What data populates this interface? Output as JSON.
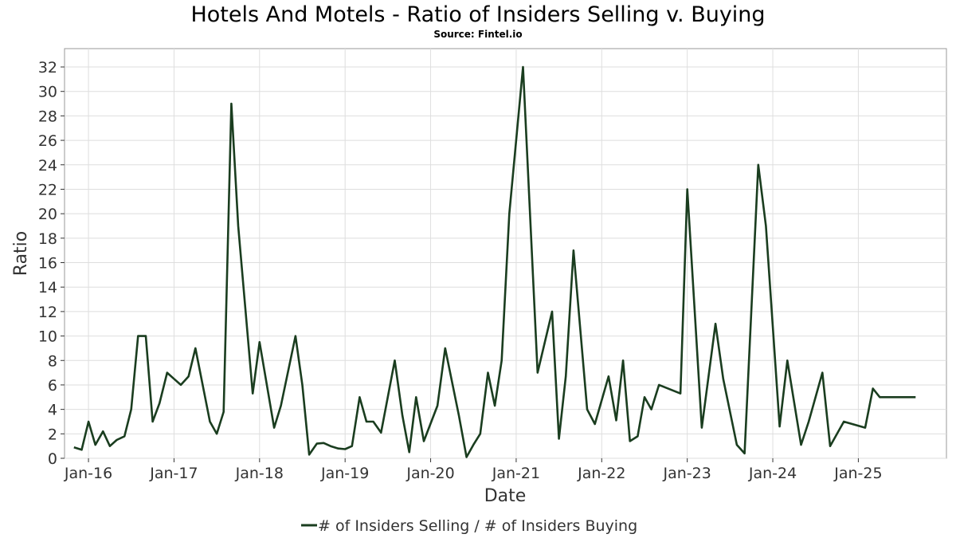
{
  "chart_data": {
    "type": "line",
    "title": "Hotels And Motels - Ratio of Insiders Selling v. Buying",
    "subtitle": "Source: Fintel.io",
    "xlabel": "Date",
    "ylabel": "Ratio",
    "ylim": [
      0,
      33.5
    ],
    "yticks": [
      0,
      2,
      4,
      6,
      8,
      10,
      12,
      14,
      16,
      18,
      20,
      22,
      24,
      26,
      28,
      30,
      32
    ],
    "xlim": [
      2015.72,
      2026.03
    ],
    "xticks": [
      {
        "label": "Jan-16",
        "x": 2016.0
      },
      {
        "label": "Jan-17",
        "x": 2017.0
      },
      {
        "label": "Jan-18",
        "x": 2018.0
      },
      {
        "label": "Jan-19",
        "x": 2019.0
      },
      {
        "label": "Jan-20",
        "x": 2020.0
      },
      {
        "label": "Jan-21",
        "x": 2021.0
      },
      {
        "label": "Jan-22",
        "x": 2022.0
      },
      {
        "label": "Jan-23",
        "x": 2023.0
      },
      {
        "label": "Jan-24",
        "x": 2024.0
      },
      {
        "label": "Jan-25",
        "x": 2025.0
      }
    ],
    "grid": true,
    "legend_position": "bottom-center",
    "line_color": "#1a3d1f",
    "series": [
      {
        "name": "# of Insiders Selling / # of Insiders Buying",
        "x": [
          2015.83,
          2015.92,
          2016.0,
          2016.08,
          2016.17,
          2016.25,
          2016.33,
          2016.42,
          2016.5,
          2016.58,
          2016.67,
          2016.75,
          2016.83,
          2016.92,
          2017.0,
          2017.08,
          2017.17,
          2017.25,
          2017.42,
          2017.5,
          2017.58,
          2017.67,
          2017.75,
          2017.92,
          2018.0,
          2018.17,
          2018.25,
          2018.42,
          2018.5,
          2018.58,
          2018.67,
          2018.75,
          2018.83,
          2018.92,
          2019.0,
          2019.08,
          2019.17,
          2019.25,
          2019.33,
          2019.42,
          2019.58,
          2019.67,
          2019.75,
          2019.83,
          2019.92,
          2020.08,
          2020.17,
          2020.33,
          2020.42,
          2020.5,
          2020.58,
          2020.67,
          2020.75,
          2020.83,
          2020.92,
          2021.08,
          2021.25,
          2021.42,
          2021.5,
          2021.58,
          2021.67,
          2021.83,
          2021.92,
          2022.08,
          2022.17,
          2022.25,
          2022.33,
          2022.42,
          2022.5,
          2022.58,
          2022.67,
          2022.92,
          2023.0,
          2023.17,
          2023.33,
          2023.42,
          2023.58,
          2023.67,
          2023.83,
          2023.92,
          2024.08,
          2024.17,
          2024.33,
          2024.42,
          2024.58,
          2024.67,
          2024.83,
          2025.08,
          2025.17,
          2025.25,
          2025.33,
          2025.5,
          2025.67
        ],
        "y": [
          0.9,
          0.7,
          3.0,
          1.1,
          2.2,
          1.0,
          1.5,
          1.8,
          4.0,
          10.0,
          10.0,
          3.0,
          4.5,
          7.0,
          6.5,
          6.0,
          6.7,
          9.0,
          3.0,
          2.0,
          3.8,
          29.0,
          19.0,
          5.3,
          9.5,
          2.5,
          4.3,
          10.0,
          6.0,
          0.3,
          1.2,
          1.25,
          1.0,
          0.8,
          0.75,
          1.0,
          5.0,
          3.0,
          3.0,
          2.1,
          8.0,
          3.5,
          0.5,
          5.0,
          1.4,
          4.3,
          9.0,
          3.5,
          0.1,
          1.1,
          2.0,
          7.0,
          4.3,
          8.0,
          20.0,
          32.0,
          7.0,
          12.0,
          1.6,
          6.7,
          17.0,
          4.0,
          2.8,
          6.7,
          3.1,
          8.0,
          1.4,
          1.8,
          5.0,
          4.0,
          6.0,
          5.3,
          22.0,
          2.5,
          11.0,
          6.5,
          1.1,
          0.4,
          24.0,
          19.0,
          2.6,
          8.0,
          1.1,
          3.0,
          7.0,
          1.0,
          3.0,
          2.5,
          5.7,
          5.0,
          5.0,
          5.0,
          5.0
        ]
      }
    ]
  }
}
